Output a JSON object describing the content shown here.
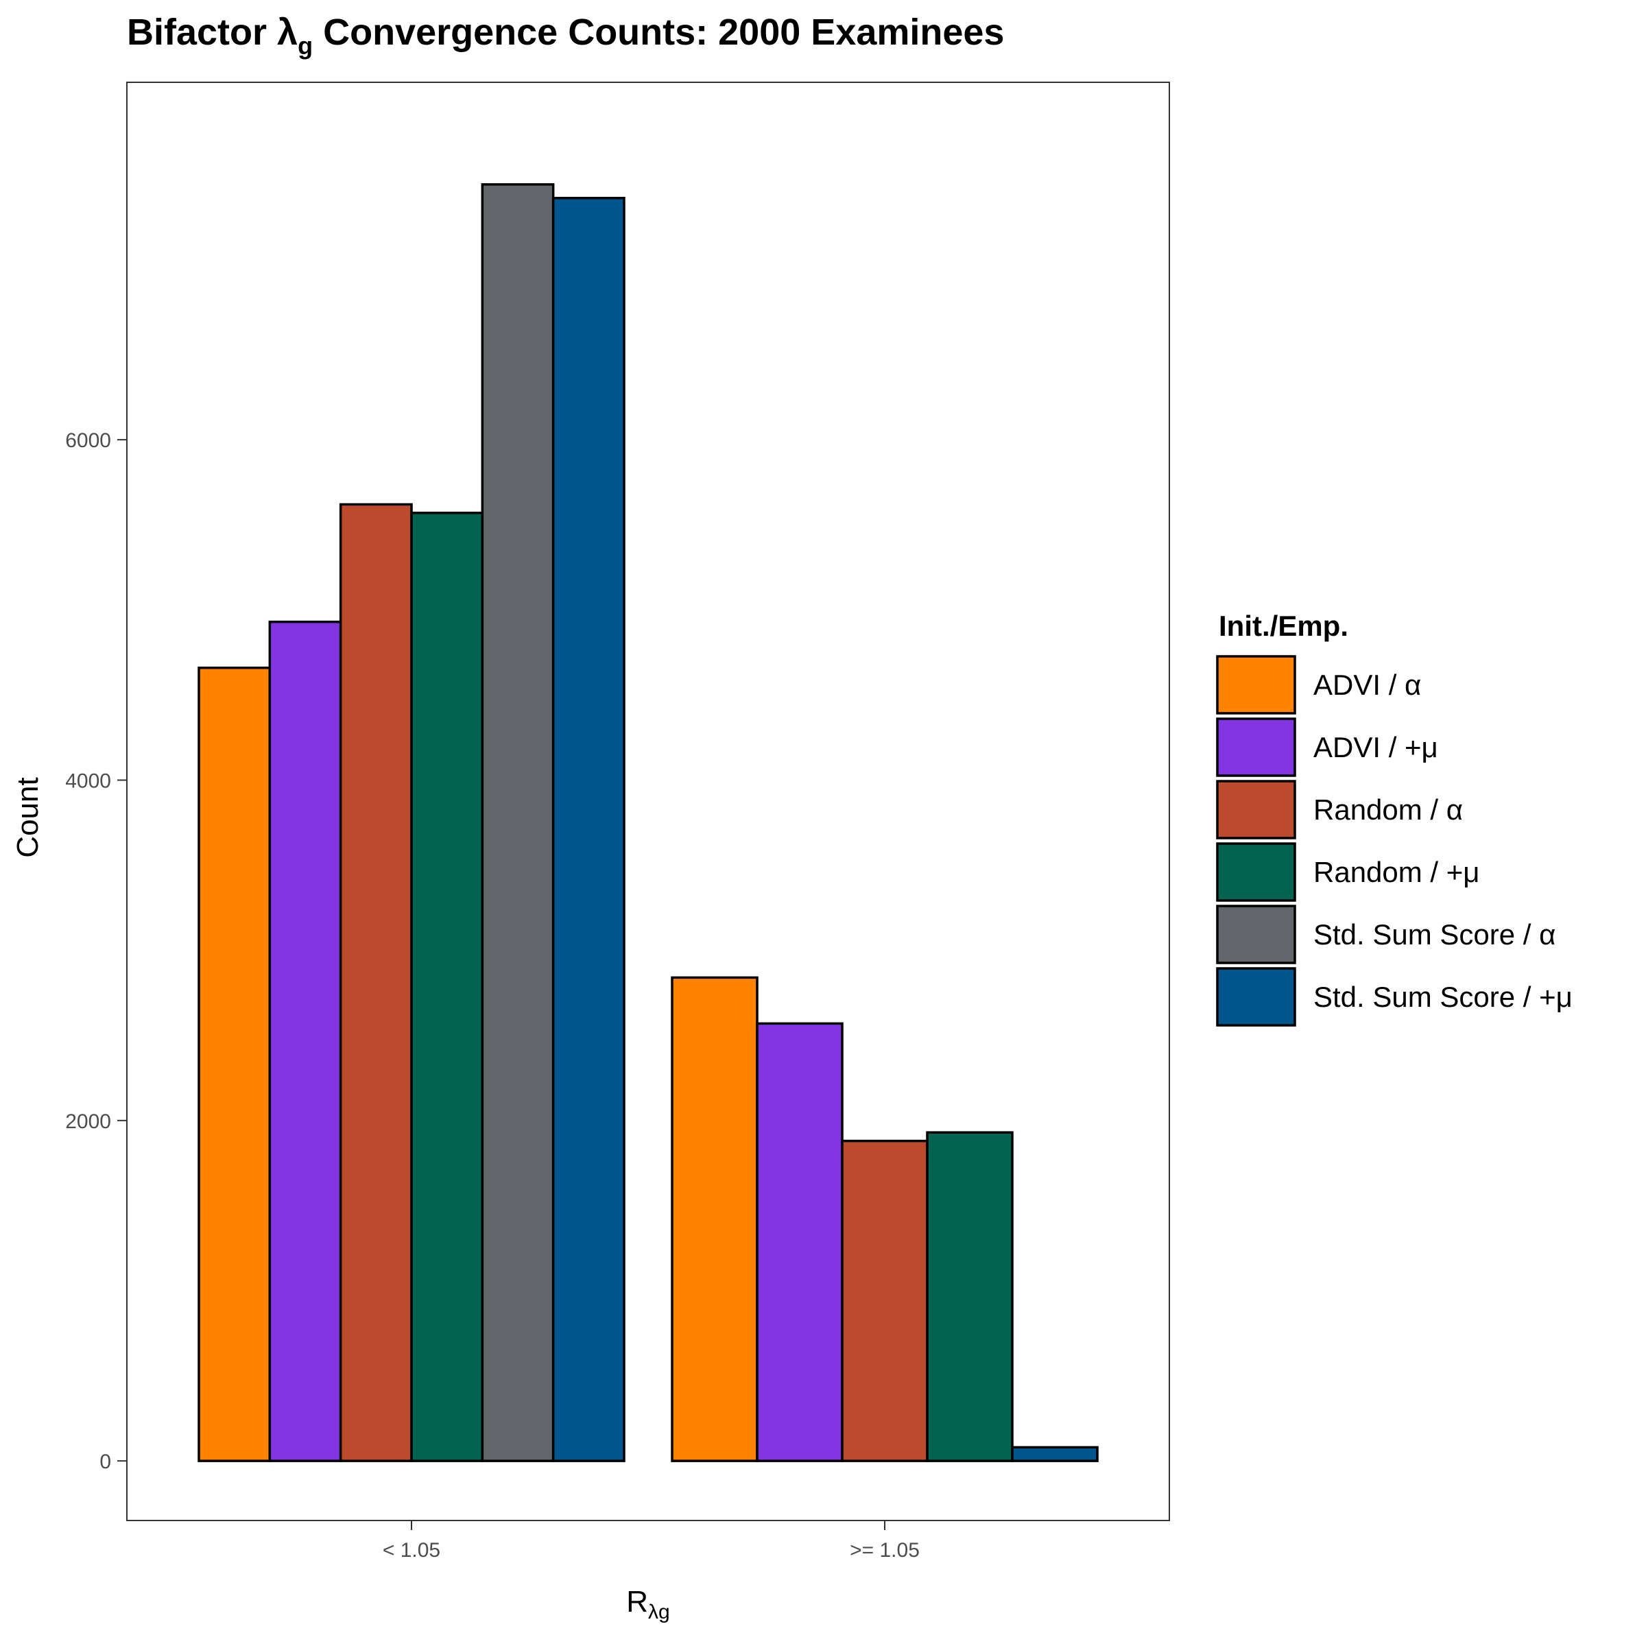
{
  "chart_data": {
    "type": "bar",
    "title": {
      "main": "Bifactor λ",
      "sub": "g",
      "rest": " Convergence Counts: 2000 Examinees"
    },
    "xlabel": {
      "main": "R",
      "sub": "λg"
    },
    "ylabel": "Count",
    "categories": [
      "< 1.05",
      ">= 1.05"
    ],
    "ylim": [
      -350,
      8100
    ],
    "yticks": [
      0,
      2000,
      4000,
      6000
    ],
    "ytick_labels": [
      "0",
      "2000",
      "4000",
      "6000"
    ],
    "grid": false,
    "legend": {
      "title": "Init./Emp.",
      "position": "right"
    },
    "series": [
      {
        "name": "ADVI / α",
        "color": "#FF8200",
        "values": [
          4660,
          2840
        ]
      },
      {
        "name": "ADVI / +μ",
        "color": "#8134DF",
        "values": [
          4930,
          2570
        ]
      },
      {
        "name": "Random / α",
        "color": "#BC4A2D",
        "values": [
          5620,
          1880
        ]
      },
      {
        "name": "Random / +μ",
        "color": "#006450",
        "values": [
          5570,
          1930
        ]
      },
      {
        "name": "Std. Sum Score / α",
        "color": "#63666A",
        "values": [
          7500,
          0
        ]
      },
      {
        "name": "Std. Sum Score / +μ",
        "color": "#00558C",
        "values": [
          7420,
          80
        ]
      }
    ]
  }
}
